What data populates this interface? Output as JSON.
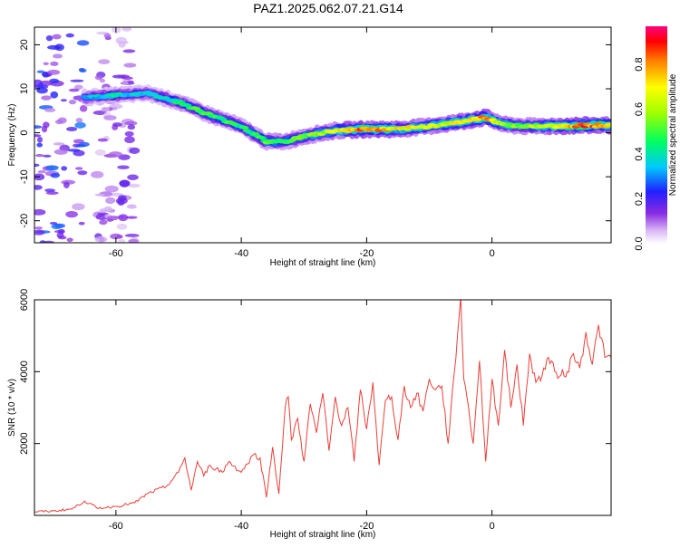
{
  "title": "PAZ1.2025.062.07.21.G14",
  "chart_data": [
    {
      "type": "heatmap",
      "xlabel": "Height of straight line (km)",
      "ylabel": "Frequency (Hz)",
      "xlim": [
        -73,
        19
      ],
      "ylim": [
        -25,
        24
      ],
      "xticks": [
        -60,
        -40,
        -20,
        0
      ],
      "yticks": [
        -20,
        -10,
        0,
        10,
        20
      ],
      "colorbar": {
        "label": "Normalized spectral amplitude",
        "range": [
          0,
          0.97
        ],
        "ticks": [
          0.0,
          0.2,
          0.4,
          0.6,
          0.8
        ],
        "colormap": "rainbow"
      },
      "ridge": {
        "x": [
          -65,
          -60,
          -55,
          -50,
          -45,
          -40,
          -36,
          -33,
          -30,
          -25,
          -20,
          -15,
          -10,
          -5,
          -1,
          2,
          5,
          10,
          15,
          19
        ],
        "y": [
          8,
          8.5,
          9,
          7,
          4,
          1.5,
          -2,
          -2,
          -0.8,
          0.5,
          0.8,
          0.8,
          1.5,
          2.5,
          3.5,
          1.8,
          1.5,
          1.5,
          1.7,
          1.7
        ],
        "amplitude": [
          0.35,
          0.4,
          0.35,
          0.45,
          0.5,
          0.45,
          0.55,
          0.5,
          0.55,
          0.65,
          0.85,
          0.7,
          0.65,
          0.7,
          0.8,
          0.6,
          0.55,
          0.7,
          0.85,
          0.8
        ]
      },
      "noise_bands": [
        {
          "x_from": -73,
          "x_to": -65,
          "amplitude": 0.25
        },
        {
          "x_from": -63,
          "x_to": -57,
          "amplitude": 0.15
        }
      ]
    },
    {
      "type": "line",
      "xlabel": "Height of straight line (km)",
      "ylabel": "SNR (10 * v/v)",
      "xlim": [
        -73,
        19
      ],
      "ylim": [
        0,
        6000
      ],
      "xticks": [
        -60,
        -40,
        -20,
        0
      ],
      "yticks": [
        2000,
        4000,
        6000
      ],
      "color": "#e8403a",
      "x": [
        -73,
        -70,
        -67,
        -65,
        -63,
        -60,
        -57,
        -55,
        -52,
        -50,
        -49,
        -48,
        -47,
        -46,
        -45,
        -44,
        -43,
        -42,
        -40,
        -38,
        -37,
        -36,
        -35,
        -34,
        -33,
        -32.5,
        -32,
        -31,
        -30,
        -29,
        -28,
        -27,
        -26,
        -25,
        -24,
        -23,
        -22,
        -21,
        -20,
        -19,
        -18,
        -17,
        -16,
        -15,
        -14,
        -13,
        -12,
        -11,
        -10,
        -9,
        -8,
        -7,
        -6,
        -5,
        -4.5,
        -4,
        -3,
        -2,
        -1,
        0,
        1,
        2,
        3,
        4,
        5,
        6,
        7,
        8,
        9,
        10,
        11,
        12,
        13,
        14,
        15,
        16,
        17,
        18,
        19
      ],
      "y": [
        100,
        120,
        180,
        400,
        200,
        250,
        350,
        600,
        800,
        1200,
        1600,
        700,
        1500,
        1100,
        1400,
        1300,
        1200,
        1500,
        1200,
        1700,
        1600,
        500,
        1900,
        600,
        3000,
        3300,
        2100,
        2700,
        1500,
        3100,
        2300,
        3400,
        1800,
        3300,
        2500,
        3000,
        1500,
        3500,
        2400,
        3700,
        1400,
        3200,
        3300,
        2100,
        3600,
        3000,
        3400,
        2900,
        3800,
        3500,
        3600,
        2000,
        4000,
        6100,
        3800,
        3300,
        2000,
        4300,
        1500,
        3800,
        2500,
        4600,
        3000,
        4200,
        2500,
        4500,
        3700,
        3900,
        4400,
        4000,
        3900,
        4000,
        4500,
        4100,
        5100,
        4200,
        5300,
        4400,
        4400
      ]
    }
  ]
}
